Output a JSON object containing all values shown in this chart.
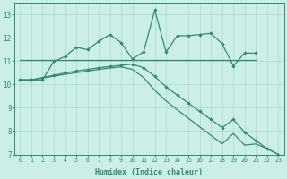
{
  "xlabel": "Humidex (Indice chaleur)",
  "color": "#2e8b75",
  "bg_color": "#cceee8",
  "grid_color": "#aad8d0",
  "ylim": [
    7,
    13.5
  ],
  "yticks": [
    7,
    8,
    9,
    10,
    11,
    12,
    13
  ],
  "xlim": [
    -0.5,
    23.5
  ],
  "line_zigzag_x": [
    0,
    1,
    2,
    3,
    4,
    5,
    6,
    7,
    8,
    9,
    10,
    11,
    12,
    13,
    14,
    15,
    16,
    17,
    18,
    19,
    20,
    21
  ],
  "line_zigzag_y": [
    10.2,
    10.2,
    10.2,
    11.0,
    11.2,
    11.6,
    11.5,
    11.85,
    12.15,
    11.8,
    11.1,
    11.4,
    13.2,
    11.4,
    12.1,
    12.1,
    12.15,
    12.2,
    11.75,
    10.8,
    11.35,
    11.35
  ],
  "line_flat_x": [
    0,
    1,
    2,
    3,
    4,
    5,
    6,
    7,
    8,
    9,
    10,
    11,
    12,
    13,
    14,
    15,
    16,
    17,
    18,
    19,
    20,
    21
  ],
  "line_flat_y": [
    11.05,
    11.05,
    11.05,
    11.05,
    11.05,
    11.05,
    11.05,
    11.05,
    11.05,
    11.05,
    11.05,
    11.05,
    11.05,
    11.05,
    11.05,
    11.05,
    11.05,
    11.05,
    11.05,
    11.05,
    11.05,
    11.05
  ],
  "line_diag1_x": [
    0,
    1,
    2,
    3,
    4,
    5,
    6,
    7,
    8,
    9,
    10,
    11,
    12,
    13,
    14,
    15,
    16,
    17,
    18,
    19,
    20,
    21,
    22,
    23
  ],
  "line_diag1_y": [
    10.2,
    10.2,
    10.3,
    10.4,
    10.5,
    10.58,
    10.65,
    10.72,
    10.78,
    10.83,
    10.88,
    10.72,
    10.35,
    9.9,
    9.55,
    9.2,
    8.85,
    8.5,
    8.15,
    8.5,
    7.95,
    7.6,
    7.25,
    7.0
  ],
  "line_diag2_x": [
    0,
    1,
    2,
    3,
    4,
    5,
    6,
    7,
    8,
    9,
    10,
    11,
    12,
    13,
    14,
    15,
    16,
    17,
    18,
    19,
    20,
    21,
    22,
    23
  ],
  "line_diag2_y": [
    10.2,
    10.2,
    10.28,
    10.36,
    10.44,
    10.51,
    10.58,
    10.65,
    10.71,
    10.76,
    10.65,
    10.3,
    9.75,
    9.3,
    8.92,
    8.55,
    8.18,
    7.82,
    7.45,
    7.9,
    7.4,
    7.45,
    7.25,
    7.0
  ]
}
